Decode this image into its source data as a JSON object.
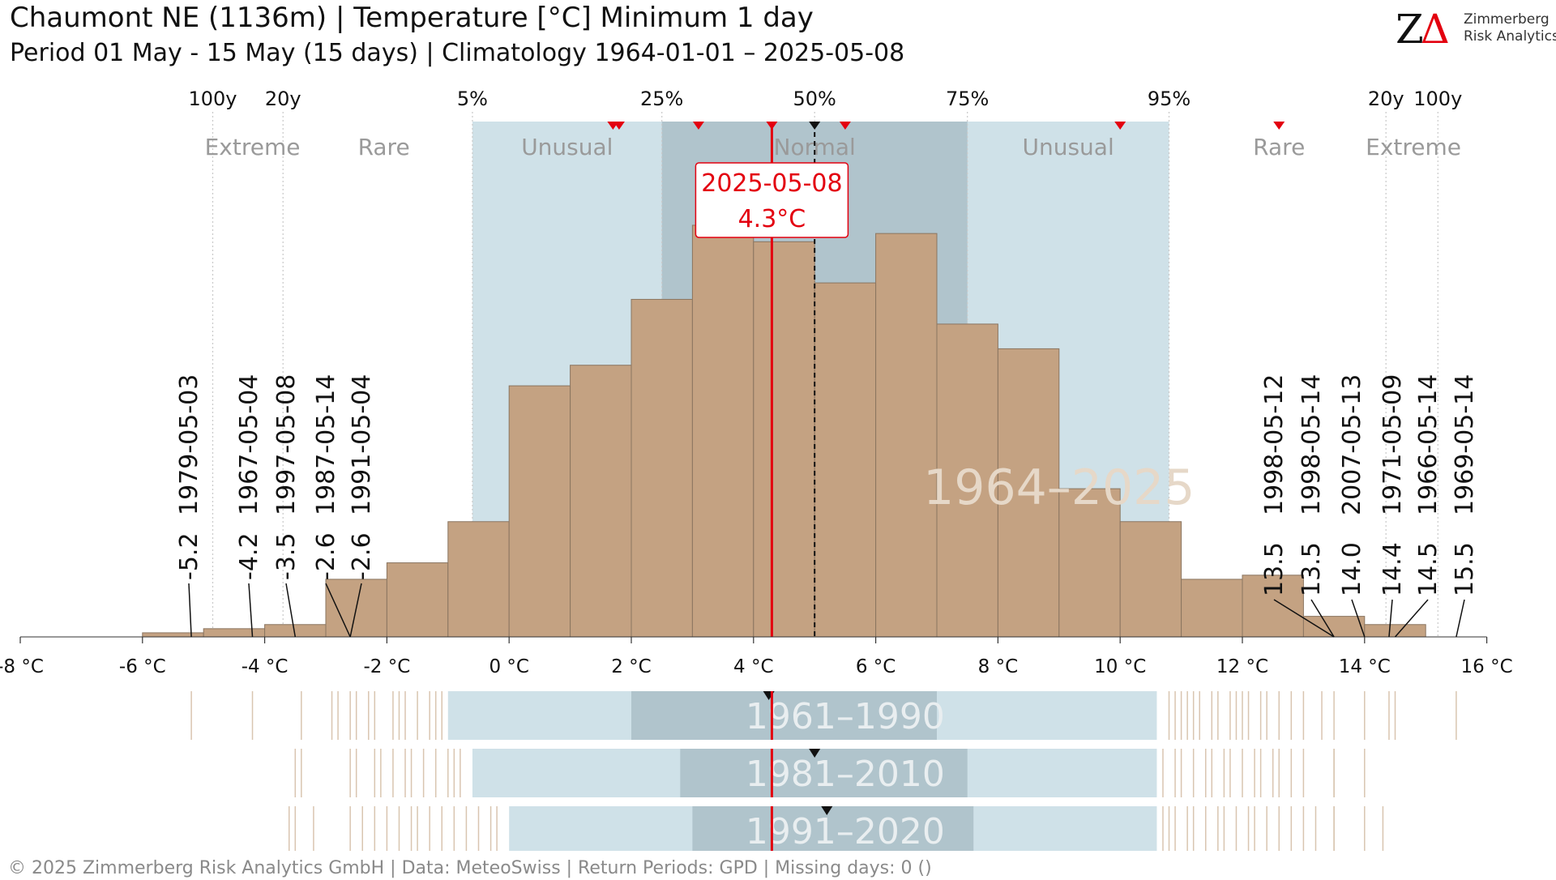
{
  "header": {
    "title": "Chaumont  NE (1136m) | Temperature [°C] Minimum 1 day",
    "subtitle": "Period 01 May - 15 May (15 days) | Climatology 1964-01-01 – 2025-05-08"
  },
  "logo": {
    "mark_z": "Z",
    "mark_delta": "Δ",
    "line1": "Zimmerberg",
    "line2": "Risk Analytics"
  },
  "footer": {
    "text": "©  2025 Zimmerberg Risk Analytics GmbH | Data: MeteoSwiss | Return Periods: GPD | Missing days: 0 ()"
  },
  "colors": {
    "histogram": "#c4a282",
    "histogram_edge": "#8a7560",
    "unusual_band": "#cfe1e8",
    "normal_band": "#b0c4cc",
    "current_line": "#e3000f",
    "category_text": "#9a9a9a",
    "watermark": "#e6d8c8",
    "rug_line": "#d9c5b0"
  },
  "chart_data": {
    "type": "bar",
    "variable": "Temperature [°C] Minimum 1 day",
    "x_ticks": [
      -8,
      -6,
      -4,
      -2,
      0,
      2,
      4,
      6,
      8,
      10,
      12,
      14,
      16
    ],
    "x_unit": " °C",
    "xlim": [
      -8,
      16
    ],
    "histogram": {
      "bin_width": 1,
      "bin_edges": [
        -6,
        -5,
        -4,
        -3,
        -2,
        -1,
        0,
        1,
        2,
        3,
        4,
        5,
        6,
        7,
        8,
        9,
        10,
        11,
        12,
        13,
        14,
        15
      ],
      "relative_heights": [
        0.01,
        0.02,
        0.03,
        0.14,
        0.18,
        0.28,
        0.61,
        0.66,
        0.82,
        1.0,
        0.96,
        0.86,
        0.98,
        0.76,
        0.7,
        0.36,
        0.28,
        0.14,
        0.15,
        0.05,
        0.03
      ]
    },
    "percentile_axis": {
      "labels": [
        "100y",
        "20y",
        "5%",
        "25%",
        "50%",
        "75%",
        "95%",
        "20y",
        "100y"
      ],
      "values": [
        -4.85,
        -3.7,
        -0.6,
        2.5,
        5.0,
        7.5,
        10.8,
        14.35,
        15.2
      ]
    },
    "categories": {
      "labels": [
        "Extreme",
        "Rare",
        "Unusual",
        "Normal",
        "Unusual",
        "Rare",
        "Extreme"
      ],
      "values": [
        -4.2,
        -2.05,
        0.95,
        5.0,
        9.15,
        12.6,
        14.8
      ]
    },
    "bands": {
      "unusual": [
        -0.6,
        10.8
      ],
      "normal": [
        2.5,
        7.5
      ]
    },
    "median": 5.0,
    "current": {
      "date": "2025-05-08",
      "value": 4.3,
      "label": "4.3°C"
    },
    "recent_markers": [
      1.7,
      1.8,
      3.1,
      4.3,
      5.5,
      10.0,
      12.6
    ],
    "extremes_low": [
      {
        "date": "1979-05-03",
        "value": -5.2,
        "label": "-5.2"
      },
      {
        "date": "1967-05-04",
        "value": -4.2,
        "label": "-4.2"
      },
      {
        "date": "1997-05-08",
        "value": -3.5,
        "label": "-3.5"
      },
      {
        "date": "1987-05-14",
        "value": -2.6,
        "label": "-2.6"
      },
      {
        "date": "1991-05-04",
        "value": -2.6,
        "label": "-2.6"
      }
    ],
    "extremes_high": [
      {
        "date": "1998-05-12",
        "value": 13.5,
        "label": "13.5"
      },
      {
        "date": "1998-05-14",
        "value": 13.5,
        "label": "13.5"
      },
      {
        "date": "2007-05-13",
        "value": 14.0,
        "label": "14.0"
      },
      {
        "date": "1971-05-09",
        "value": 14.4,
        "label": "14.4"
      },
      {
        "date": "1966-05-14",
        "value": 14.5,
        "label": "14.5"
      },
      {
        "date": "1969-05-14",
        "value": 15.5,
        "label": "15.5"
      }
    ],
    "main_period_label": "1964–2025",
    "reference_periods": [
      {
        "label": "1961–1990",
        "unusual": [
          -1.0,
          10.6
        ],
        "normal": [
          2.0,
          7.0
        ],
        "median": 4.25,
        "rug_low": [
          -5.2,
          -4.2,
          -3.4,
          -2.9,
          -2.8,
          -2.6,
          -2.5,
          -2.3,
          -2.2,
          -1.9,
          -1.8,
          -1.7,
          -1.5,
          -1.3,
          -1.2,
          -1.1
        ],
        "rug_high": [
          10.8,
          10.9,
          11.0,
          11.1,
          11.2,
          11.3,
          11.5,
          11.6,
          11.8,
          11.9,
          12.0,
          12.1,
          12.3,
          12.4,
          12.6,
          12.8,
          13.0,
          13.3,
          13.5,
          14.0,
          14.4,
          14.5,
          15.5
        ]
      },
      {
        "label": "1981–2010",
        "unusual": [
          -0.6,
          10.6
        ],
        "normal": [
          2.8,
          7.5
        ],
        "median": 5.0,
        "rug_low": [
          -3.5,
          -3.4,
          -2.6,
          -2.5,
          -2.2,
          -2.1,
          -1.9,
          -1.7,
          -1.6,
          -1.4,
          -1.2,
          -1.0,
          -0.9,
          -0.8
        ],
        "rug_high": [
          10.7,
          10.9,
          11.0,
          11.2,
          11.4,
          11.5,
          11.7,
          11.8,
          12.0,
          12.2,
          12.3,
          12.5,
          12.6,
          12.8,
          13.0,
          13.5,
          13.5,
          14.0
        ]
      },
      {
        "label": "1991–2020",
        "unusual": [
          0.0,
          10.6
        ],
        "normal": [
          3.0,
          7.6
        ],
        "median": 5.2,
        "rug_low": [
          -3.6,
          -3.5,
          -3.2,
          -2.6,
          -2.4,
          -2.2,
          -2.0,
          -1.8,
          -1.6,
          -1.5,
          -1.3,
          -1.1,
          -0.9,
          -0.7,
          -0.5,
          -0.3,
          -0.2
        ],
        "rug_high": [
          10.7,
          10.8,
          10.9,
          11.1,
          11.2,
          11.4,
          11.6,
          11.7,
          11.9,
          12.1,
          12.2,
          12.4,
          12.6,
          12.8,
          13.0,
          13.2,
          13.5,
          13.5,
          14.0,
          14.3
        ]
      }
    ]
  }
}
